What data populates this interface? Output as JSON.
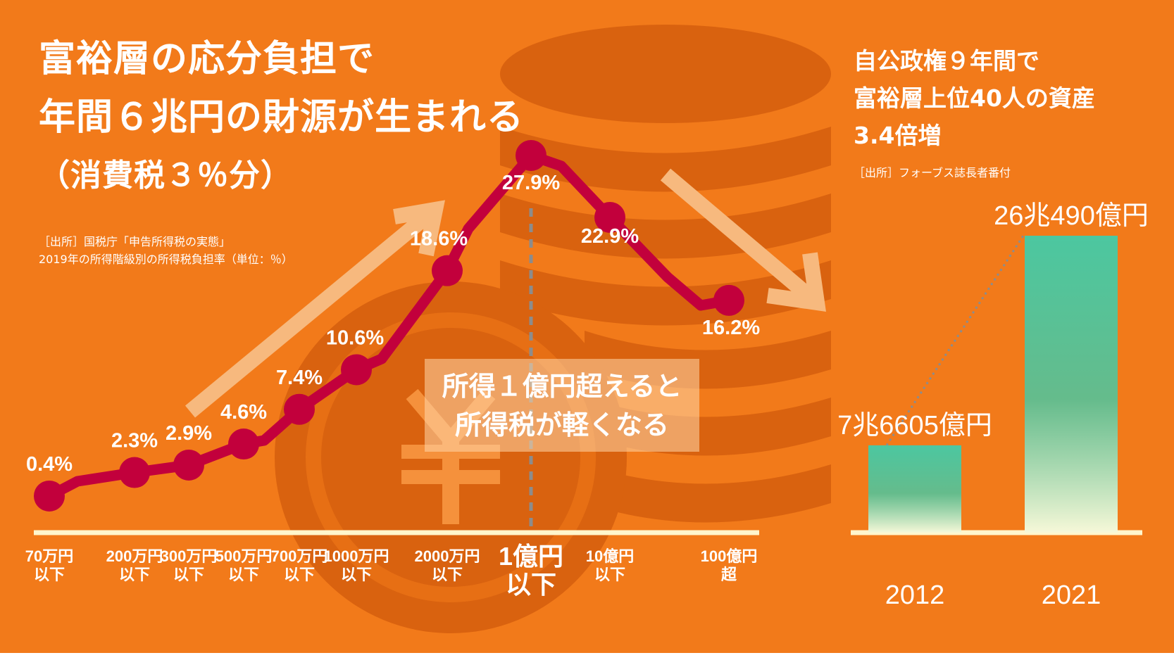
{
  "title": {
    "line1": "富裕層の応分負担で",
    "line2": "年間６兆円の財源が生まれる",
    "line3": "（消費税３％分）"
  },
  "source": {
    "line1": "［出所］国税庁「申告所得税の実態」",
    "line2": "2019年の所得階級別の所得税負担率（単位：％）"
  },
  "callout": {
    "line1": "所得１億円超えると",
    "line2": "所得税が軽くなる"
  },
  "right_panel": {
    "title_line1": "自公政権９年間で",
    "title_line2": "富裕層上位40人の資産",
    "title_line3": "3.4倍増",
    "source": "［出所］フォーブス誌長者番付"
  },
  "colors": {
    "background": "#F27A1A",
    "line": "#C2003C",
    "bar_top": "#4CC7A0",
    "bar_bottom": "#F6F8D8",
    "axis": "#FFF6CC",
    "dashed_divider": "#8C8C8C"
  },
  "chart_data": [
    {
      "type": "line",
      "title": "2019年の所得階級別の所得税負担率（単位：％）",
      "ylabel": "",
      "ylim": [
        0,
        30
      ],
      "categories": [
        {
          "top": "70万円",
          "bottom": "以下",
          "highlight": false
        },
        {
          "top": "200万円",
          "bottom": "以下",
          "highlight": false
        },
        {
          "top": "300万円",
          "bottom": "以下",
          "highlight": false
        },
        {
          "top": "500万円",
          "bottom": "以下",
          "highlight": false
        },
        {
          "top": "700万円",
          "bottom": "以下",
          "highlight": false
        },
        {
          "top": "1000万円",
          "bottom": "以下",
          "highlight": false
        },
        {
          "top": "2000万円",
          "bottom": "以下",
          "highlight": false
        },
        {
          "top": "1億円",
          "bottom": "以下",
          "highlight": true
        },
        {
          "top": "10億円",
          "bottom": "以下",
          "highlight": false
        },
        {
          "top": "100億円",
          "bottom": "超",
          "highlight": false
        }
      ],
      "values": [
        0.4,
        2.3,
        2.9,
        4.6,
        7.4,
        10.6,
        18.6,
        27.9,
        22.9,
        16.2
      ],
      "labels": [
        "0.4%",
        "2.3%",
        "2.9%",
        "4.6%",
        "7.4%",
        "10.6%",
        "18.6%",
        "27.9%",
        "22.9%",
        "16.2%"
      ],
      "grid": false,
      "legend": "none"
    },
    {
      "type": "bar",
      "categories": [
        "2012",
        "2021"
      ],
      "values": [
        76605,
        260490
      ],
      "value_unit": "億円",
      "labels": [
        "7兆6605億円",
        "26兆490億円"
      ],
      "grid": false,
      "legend": "none"
    }
  ]
}
